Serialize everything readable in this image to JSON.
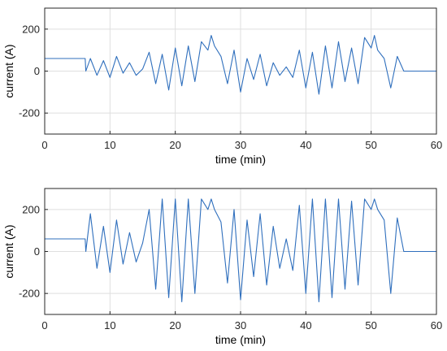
{
  "colors": {
    "trace": "#2f6fbd",
    "grid": "#dfdfdf",
    "axis": "#262626"
  },
  "chart_data": [
    {
      "type": "line",
      "xlabel": "time (min)",
      "ylabel": "current (A)",
      "xlim": [
        0,
        60
      ],
      "ylim": [
        -300,
        300
      ],
      "xticks": [
        0,
        10,
        20,
        30,
        40,
        50,
        60
      ],
      "yticks": [
        -200,
        0,
        200
      ],
      "grid": true,
      "series": [
        {
          "x": [
            0,
            6.2,
            6.3,
            7,
            8,
            9,
            10,
            11,
            12,
            13,
            14,
            15,
            16,
            17,
            18,
            19,
            20,
            21,
            22,
            23,
            24,
            25,
            25.5,
            26,
            27,
            28,
            29,
            30,
            31,
            32,
            33,
            34,
            35,
            36,
            37,
            38,
            39,
            40,
            41,
            42,
            43,
            44,
            45,
            46,
            47,
            48,
            49,
            50,
            50.5,
            51,
            52,
            53,
            54,
            55,
            60
          ],
          "y": [
            60,
            60,
            0,
            60,
            -20,
            50,
            -30,
            70,
            -10,
            40,
            -20,
            10,
            90,
            -60,
            80,
            -90,
            110,
            -70,
            120,
            -50,
            140,
            100,
            170,
            120,
            70,
            -60,
            100,
            -100,
            60,
            -40,
            80,
            -70,
            40,
            -20,
            20,
            -30,
            100,
            -80,
            90,
            -110,
            120,
            -80,
            140,
            -50,
            110,
            -60,
            160,
            110,
            170,
            100,
            60,
            -80,
            70,
            0,
            0
          ]
        }
      ]
    },
    {
      "type": "line",
      "xlabel": "time (min)",
      "ylabel": "current (A)",
      "xlim": [
        0,
        60
      ],
      "ylim": [
        -300,
        300
      ],
      "xticks": [
        0,
        10,
        20,
        30,
        40,
        50,
        60
      ],
      "yticks": [
        -200,
        0,
        200
      ],
      "grid": true,
      "series": [
        {
          "x": [
            0,
            6.2,
            6.3,
            7,
            8,
            9,
            10,
            11,
            12,
            13,
            14,
            15,
            16,
            17,
            18,
            19,
            20,
            21,
            22,
            23,
            24,
            25,
            25.5,
            26,
            27,
            28,
            29,
            30,
            31,
            32,
            33,
            34,
            35,
            36,
            37,
            38,
            39,
            40,
            41,
            42,
            43,
            44,
            45,
            46,
            47,
            48,
            49,
            50,
            50.5,
            51,
            52,
            53,
            54,
            55,
            60
          ],
          "y": [
            60,
            60,
            0,
            180,
            -80,
            120,
            -100,
            150,
            -60,
            90,
            -50,
            40,
            200,
            -180,
            250,
            -220,
            250,
            -240,
            250,
            -200,
            250,
            200,
            250,
            200,
            140,
            -150,
            200,
            -230,
            150,
            -120,
            180,
            -160,
            120,
            -80,
            60,
            -90,
            220,
            -200,
            250,
            -240,
            250,
            -220,
            250,
            -180,
            240,
            -160,
            250,
            200,
            250,
            200,
            150,
            -200,
            160,
            0,
            0
          ]
        }
      ]
    }
  ]
}
